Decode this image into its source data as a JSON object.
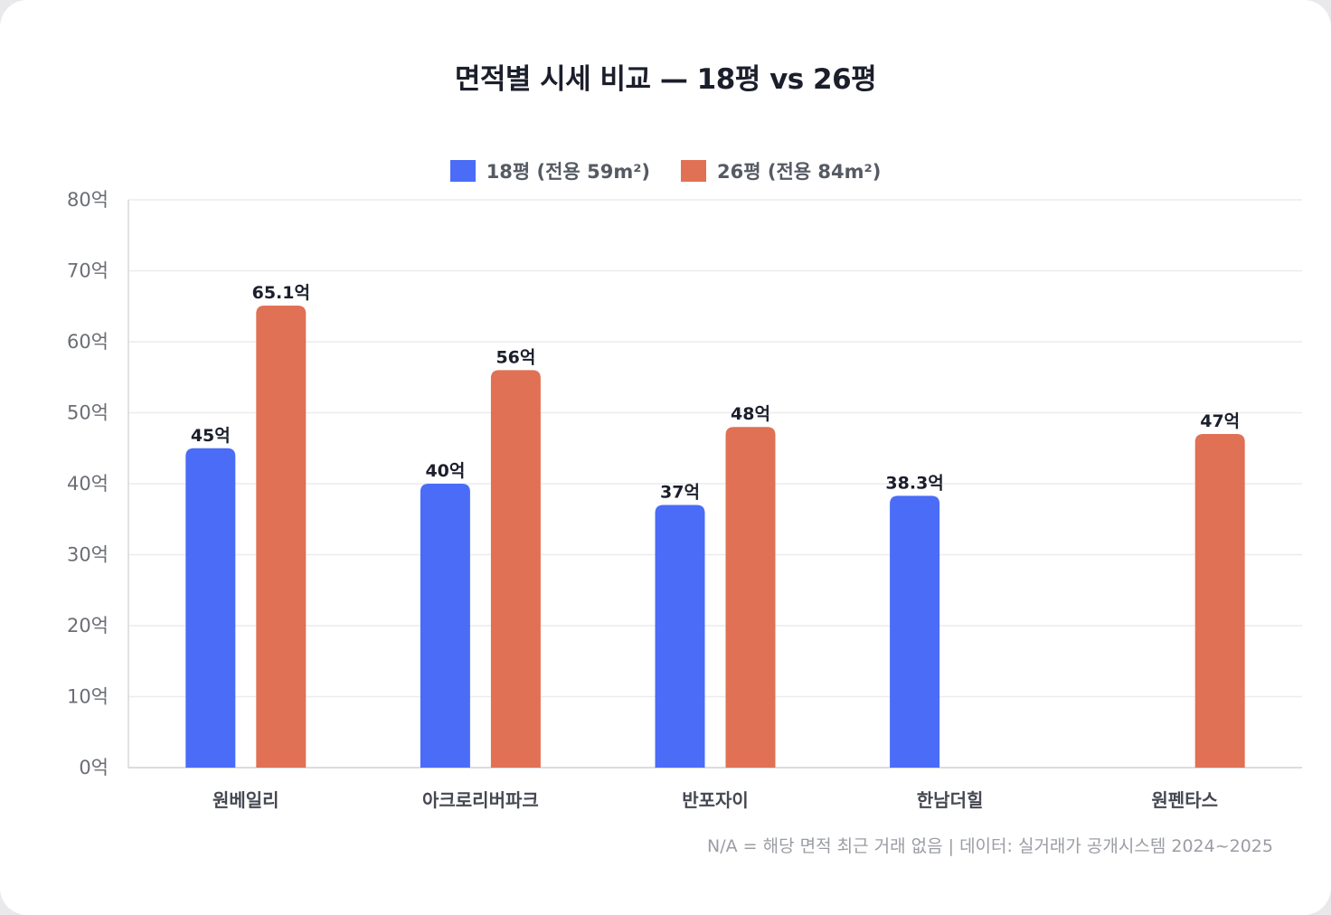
{
  "chart_data": {
    "type": "bar",
    "title": "면적별 시세 비교 — 18평 vs 26평",
    "categories": [
      "원베일리",
      "아크로리버파크",
      "반포자이",
      "한남더힐",
      "원펜타스"
    ],
    "series": [
      {
        "name": "18평 (전용 59m²)",
        "color": "#4a6cf7",
        "values": [
          45,
          40,
          37,
          38.3,
          null
        ],
        "labels": [
          "45억",
          "40억",
          "37억",
          "38.3억",
          ""
        ]
      },
      {
        "name": "26평 (전용 84m²)",
        "color": "#e07154",
        "values": [
          65.1,
          56,
          48,
          null,
          47
        ],
        "labels": [
          "65.1억",
          "56억",
          "48억",
          "",
          "47억"
        ]
      }
    ],
    "ylim": [
      0,
      80
    ],
    "yticks": [
      0,
      10,
      20,
      30,
      40,
      50,
      60,
      70,
      80
    ],
    "ytick_labels": [
      "0억",
      "10억",
      "20억",
      "30억",
      "40억",
      "50억",
      "60억",
      "70억",
      "80억"
    ],
    "xlabel": "",
    "ylabel": "",
    "grid": true,
    "legend_position": "top-center"
  },
  "footnote": "N/A = 해당 면적 최근 거래 없음 | 데이터: 실거래가 공개시스템 2024~2025"
}
